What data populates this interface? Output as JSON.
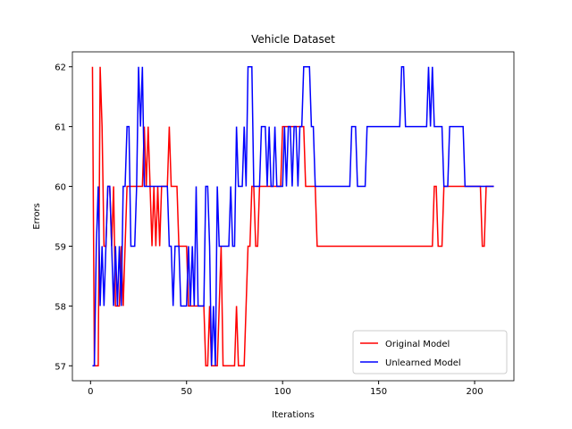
{
  "chart_data": {
    "type": "line",
    "title": "Vehicle Dataset",
    "x_label": "Iterations",
    "y_label": "Errors",
    "x": [
      1,
      2,
      3,
      4,
      5,
      6,
      7,
      8,
      9,
      10,
      11,
      12,
      13,
      14,
      15,
      16,
      17,
      18,
      19,
      20,
      21,
      22,
      23,
      24,
      25,
      26,
      27,
      28,
      29,
      30,
      31,
      32,
      33,
      34,
      35,
      36,
      37,
      38,
      39,
      40,
      41,
      42,
      43,
      44,
      45,
      46,
      47,
      48,
      49,
      50,
      51,
      52,
      53,
      54,
      55,
      56,
      57,
      58,
      59,
      60,
      61,
      62,
      63,
      64,
      65,
      66,
      67,
      68,
      69,
      70,
      71,
      72,
      73,
      74,
      75,
      76,
      77,
      78,
      79,
      80,
      81,
      82,
      83,
      84,
      85,
      86,
      87,
      88,
      89,
      90,
      91,
      92,
      93,
      94,
      95,
      96,
      97,
      98,
      99,
      100,
      101,
      102,
      103,
      104,
      105,
      106,
      107,
      108,
      109,
      110,
      111,
      112,
      113,
      114,
      115,
      116,
      117,
      118,
      119,
      120,
      121,
      122,
      123,
      124,
      125,
      126,
      127,
      128,
      129,
      130,
      131,
      132,
      133,
      134,
      135,
      136,
      137,
      138,
      139,
      140,
      141,
      142,
      143,
      144,
      145,
      146,
      147,
      148,
      149,
      150,
      151,
      152,
      153,
      154,
      155,
      156,
      157,
      158,
      159,
      160,
      161,
      162,
      163,
      164,
      165,
      166,
      167,
      168,
      169,
      170,
      171,
      172,
      173,
      174,
      175,
      176,
      177,
      178,
      179,
      180,
      181,
      182,
      183,
      184,
      185,
      186,
      187,
      188,
      189,
      190,
      191,
      192,
      193,
      194,
      195,
      196,
      197,
      198,
      199,
      200,
      201,
      202,
      203,
      204,
      205,
      206,
      207,
      208,
      209,
      210
    ],
    "series": [
      {
        "name": "Original Model",
        "color": "#ff0000",
        "values": [
          62,
          57,
          57,
          57,
          62,
          61,
          59,
          59,
          60,
          60,
          59,
          60,
          58,
          58,
          58,
          59,
          58,
          59,
          60,
          60,
          60,
          60,
          60,
          60,
          60,
          60,
          60,
          61,
          60,
          61,
          60,
          59,
          60,
          59,
          60,
          59,
          60,
          60,
          60,
          60,
          61,
          60,
          60,
          60,
          60,
          59,
          59,
          59,
          59,
          59,
          58,
          58,
          58,
          58,
          58,
          58,
          58,
          58,
          58,
          57,
          57,
          58,
          57,
          57,
          57,
          57,
          58,
          59,
          57,
          57,
          57,
          57,
          57,
          57,
          57,
          58,
          57,
          57,
          57,
          57,
          58,
          59,
          59,
          60,
          60,
          59,
          59,
          60,
          60,
          60,
          60,
          60,
          60,
          60,
          60,
          60,
          60,
          60,
          60,
          61,
          61,
          61,
          61,
          61,
          61,
          61,
          61,
          61,
          61,
          61,
          61,
          60,
          60,
          60,
          60,
          60,
          60,
          59,
          59,
          59,
          59,
          59,
          59,
          59,
          59,
          59,
          59,
          59,
          59,
          59,
          59,
          59,
          59,
          59,
          59,
          59,
          59,
          59,
          59,
          59,
          59,
          59,
          59,
          59,
          59,
          59,
          59,
          59,
          59,
          59,
          59,
          59,
          59,
          59,
          59,
          59,
          59,
          59,
          59,
          59,
          59,
          59,
          59,
          59,
          59,
          59,
          59,
          59,
          59,
          59,
          59,
          59,
          59,
          59,
          59,
          59,
          59,
          59,
          60,
          60,
          59,
          59,
          59,
          60,
          60,
          60,
          60,
          60,
          60,
          60,
          60,
          60,
          60,
          60,
          60,
          60,
          60,
          60,
          60,
          60,
          60,
          60,
          60,
          59,
          59,
          60,
          60,
          60,
          60,
          60
        ]
      },
      {
        "name": "Unlearned Model",
        "color": "#0000ff",
        "values": [
          57,
          57,
          59,
          60,
          58,
          59,
          58,
          59,
          60,
          60,
          59,
          58,
          59,
          58,
          59,
          58,
          60,
          60,
          61,
          61,
          59,
          59,
          59,
          60,
          62,
          61,
          62,
          60,
          60,
          60,
          60,
          60,
          60,
          60,
          60,
          60,
          60,
          60,
          60,
          60,
          59,
          59,
          58,
          59,
          59,
          59,
          58,
          58,
          58,
          58,
          59,
          58,
          59,
          58,
          60,
          58,
          58,
          58,
          58,
          60,
          60,
          59,
          57,
          58,
          57,
          60,
          59,
          59,
          59,
          59,
          59,
          59,
          60,
          59,
          59,
          61,
          60,
          60,
          60,
          61,
          60,
          62,
          62,
          62,
          60,
          60,
          60,
          60,
          61,
          61,
          61,
          60,
          61,
          60,
          60,
          61,
          60,
          60,
          60,
          60,
          61,
          60,
          61,
          61,
          60,
          61,
          61,
          60,
          61,
          61,
          62,
          62,
          62,
          62,
          61,
          61,
          60,
          60,
          60,
          60,
          60,
          60,
          60,
          60,
          60,
          60,
          60,
          60,
          60,
          60,
          60,
          60,
          60,
          60,
          60,
          61,
          61,
          61,
          60,
          60,
          60,
          60,
          60,
          61,
          61,
          61,
          61,
          61,
          61,
          61,
          61,
          61,
          61,
          61,
          61,
          61,
          61,
          61,
          61,
          61,
          61,
          62,
          62,
          61,
          61,
          61,
          61,
          61,
          61,
          61,
          61,
          61,
          61,
          61,
          61,
          62,
          61,
          62,
          61,
          61,
          61,
          61,
          61,
          60,
          60,
          60,
          61,
          61,
          61,
          61,
          61,
          61,
          61,
          61,
          60,
          60,
          60,
          60,
          60,
          60,
          60,
          60,
          60,
          60,
          60,
          60,
          60,
          60,
          60,
          60
        ]
      }
    ],
    "xlim": [
      -9.45,
      220.45
    ],
    "ylim": [
      56.75,
      62.25
    ],
    "xticks": [
      0,
      50,
      100,
      150,
      200
    ],
    "yticks": [
      57,
      58,
      59,
      60,
      61,
      62
    ],
    "legend": "lower right"
  }
}
